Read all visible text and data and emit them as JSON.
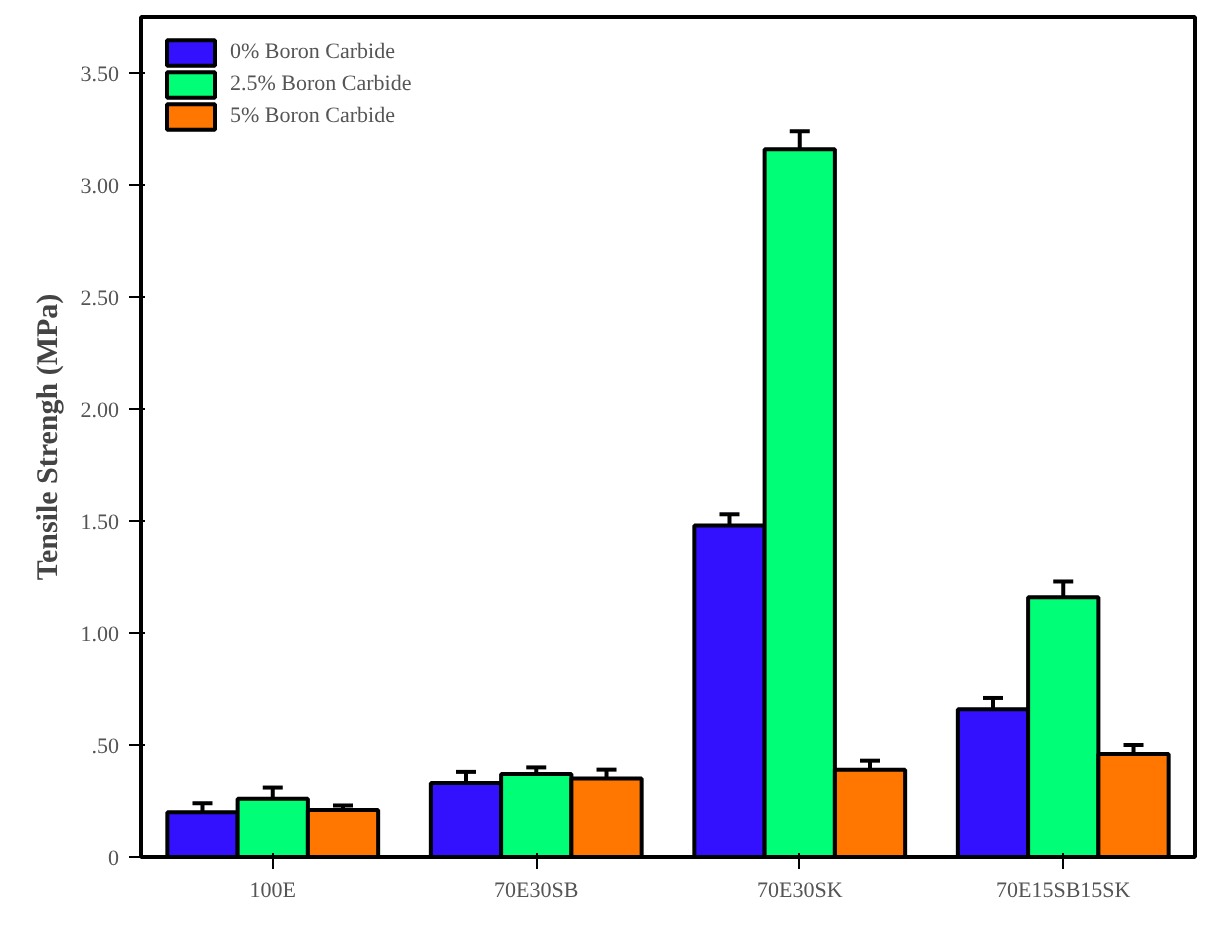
{
  "chart_data": {
    "type": "bar",
    "ylabel": "Tensile Strengh (MPa)",
    "categories": [
      "100E",
      "70E30SB",
      "70E30SK",
      "70E15SB15SK"
    ],
    "series": [
      {
        "name": "0% Boron Carbide",
        "color": "#3311ff",
        "values": [
          0.2,
          0.33,
          1.48,
          0.66
        ],
        "errors": [
          0.04,
          0.05,
          0.05,
          0.05
        ]
      },
      {
        "name": "2.5% Boron Carbide",
        "color": "#00ff77",
        "values": [
          0.26,
          0.37,
          3.16,
          1.16
        ],
        "errors": [
          0.05,
          0.03,
          0.08,
          0.07
        ]
      },
      {
        "name": "5% Boron Carbide",
        "color": "#ff7700",
        "values": [
          0.21,
          0.35,
          0.39,
          0.46
        ],
        "errors": [
          0.02,
          0.04,
          0.04,
          0.04
        ]
      }
    ],
    "ylim": [
      0,
      3.75
    ],
    "yticks": [
      0,
      {
        "value": 0.5,
        "label": ".50"
      },
      {
        "value": 1.0,
        "label": "1.00"
      },
      {
        "value": 1.5,
        "label": "1.50"
      },
      {
        "value": 2.0,
        "label": "2.00"
      },
      {
        "value": 2.5,
        "label": "2.50"
      },
      {
        "value": 3.0,
        "label": "3.00"
      },
      {
        "value": 3.5,
        "label": "3.50"
      }
    ],
    "grid": false,
    "legend": "top left"
  }
}
